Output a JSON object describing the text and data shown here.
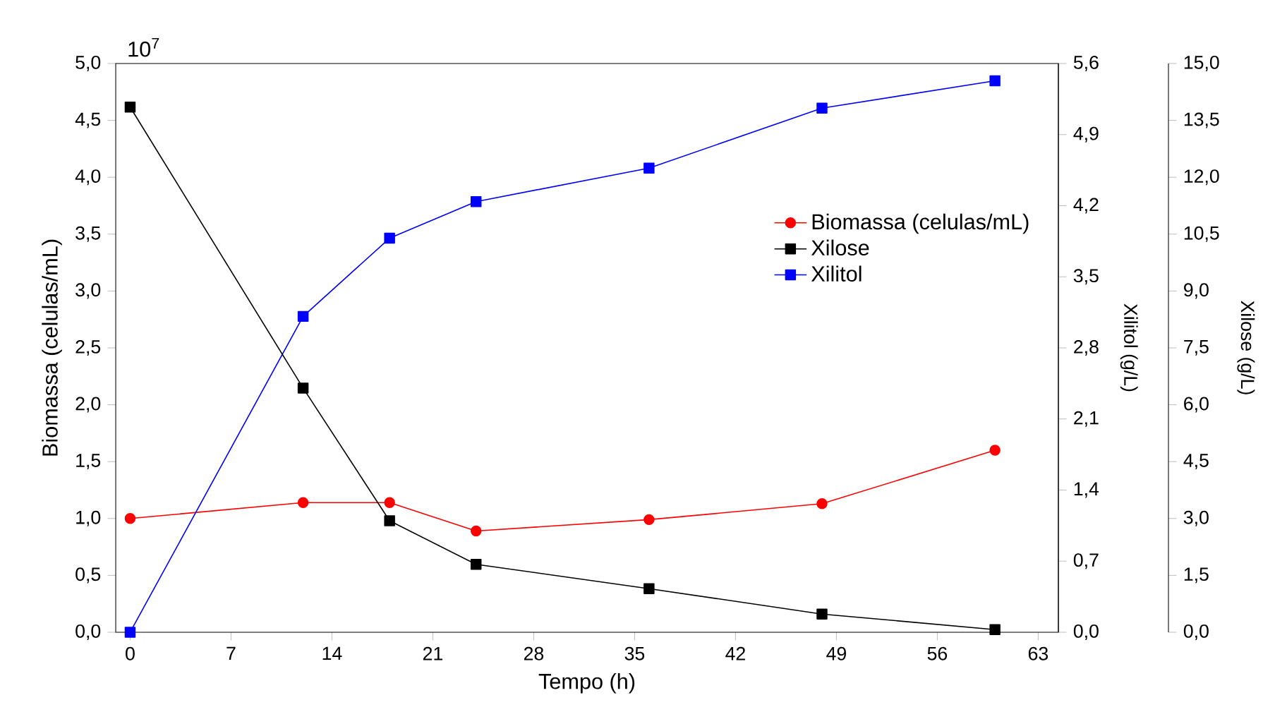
{
  "chart_data": {
    "type": "line",
    "xlabel": "Tempo (h)",
    "ylabel": "Biomassa (celulas/mL)",
    "y2label": "Xilitol (g/L)",
    "y3label": "Xilose (g/L)",
    "annotations": [
      "10$^{7}$"
    ],
    "x": [
      0,
      12,
      18,
      24,
      36,
      48,
      60
    ],
    "xlim": [
      -1,
      64.4
    ],
    "xticks": [
      0,
      7,
      14,
      21,
      28,
      35,
      42,
      49,
      56,
      63
    ],
    "ylim": [
      0,
      5
    ],
    "yticks": [
      {
        "value": 0,
        "label": "0,0"
      },
      {
        "value": 0.5,
        "label": "0,5"
      },
      {
        "value": 1,
        "label": "1,0"
      },
      {
        "value": 1.5,
        "label": "1,5"
      },
      {
        "value": 2,
        "label": "2,0"
      },
      {
        "value": 2.5,
        "label": "2,5"
      },
      {
        "value": 3,
        "label": "3,0"
      },
      {
        "value": 3.5,
        "label": "3,5"
      },
      {
        "value": 4,
        "label": "4,0"
      },
      {
        "value": 4.5,
        "label": "4,5"
      },
      {
        "value": 5,
        "label": "5,0"
      }
    ],
    "y2lim": [
      0,
      5.6
    ],
    "y2ticks": [
      {
        "value": 0,
        "label": "0,0"
      },
      {
        "value": 0.7,
        "label": "0,7"
      },
      {
        "value": 1.4,
        "label": "1,4"
      },
      {
        "value": 2.1,
        "label": "2,1"
      },
      {
        "value": 2.8,
        "label": "2,8"
      },
      {
        "value": 3.5,
        "label": "3,5"
      },
      {
        "value": 4.2,
        "label": "4,2"
      },
      {
        "value": 4.9,
        "label": "4,9"
      },
      {
        "value": 5.6,
        "label": "5,6"
      }
    ],
    "y3lim": [
      0,
      15
    ],
    "y3ticks": [
      {
        "value": 0,
        "label": "0,0"
      },
      {
        "value": 1.5,
        "label": "1,5"
      },
      {
        "value": 3,
        "label": "3,0"
      },
      {
        "value": 4.5,
        "label": "4,5"
      },
      {
        "value": 6,
        "label": "6,0"
      },
      {
        "value": 7.5,
        "label": "7,5"
      },
      {
        "value": 9,
        "label": "9,0"
      },
      {
        "value": 10.5,
        "label": "10,5"
      },
      {
        "value": 12,
        "label": "12,0"
      },
      {
        "value": 13.5,
        "label": "13,5"
      },
      {
        "value": 15,
        "label": "15,0"
      }
    ],
    "legend": "right",
    "line_style": "solid",
    "series": [
      {
        "name": "Biomassa (celulas/mL)",
        "color": "#ff0000",
        "marker": "circle",
        "values": [
          1.0,
          1.14,
          1.14,
          0.89,
          0.99,
          1.13,
          1.6
        ]
      },
      {
        "name": "Xilose",
        "color": "#000000",
        "marker": "square",
        "axis": "y3",
        "values": [
          13.85,
          6.44,
          2.94,
          1.79,
          1.15,
          0.48,
          0.07
        ]
      },
      {
        "name": "Xilitol",
        "color": "#0000ff",
        "marker": "square",
        "axis": "y2",
        "values": [
          0,
          3.11,
          3.88,
          4.24,
          4.57,
          5.16,
          5.43
        ]
      }
    ]
  }
}
